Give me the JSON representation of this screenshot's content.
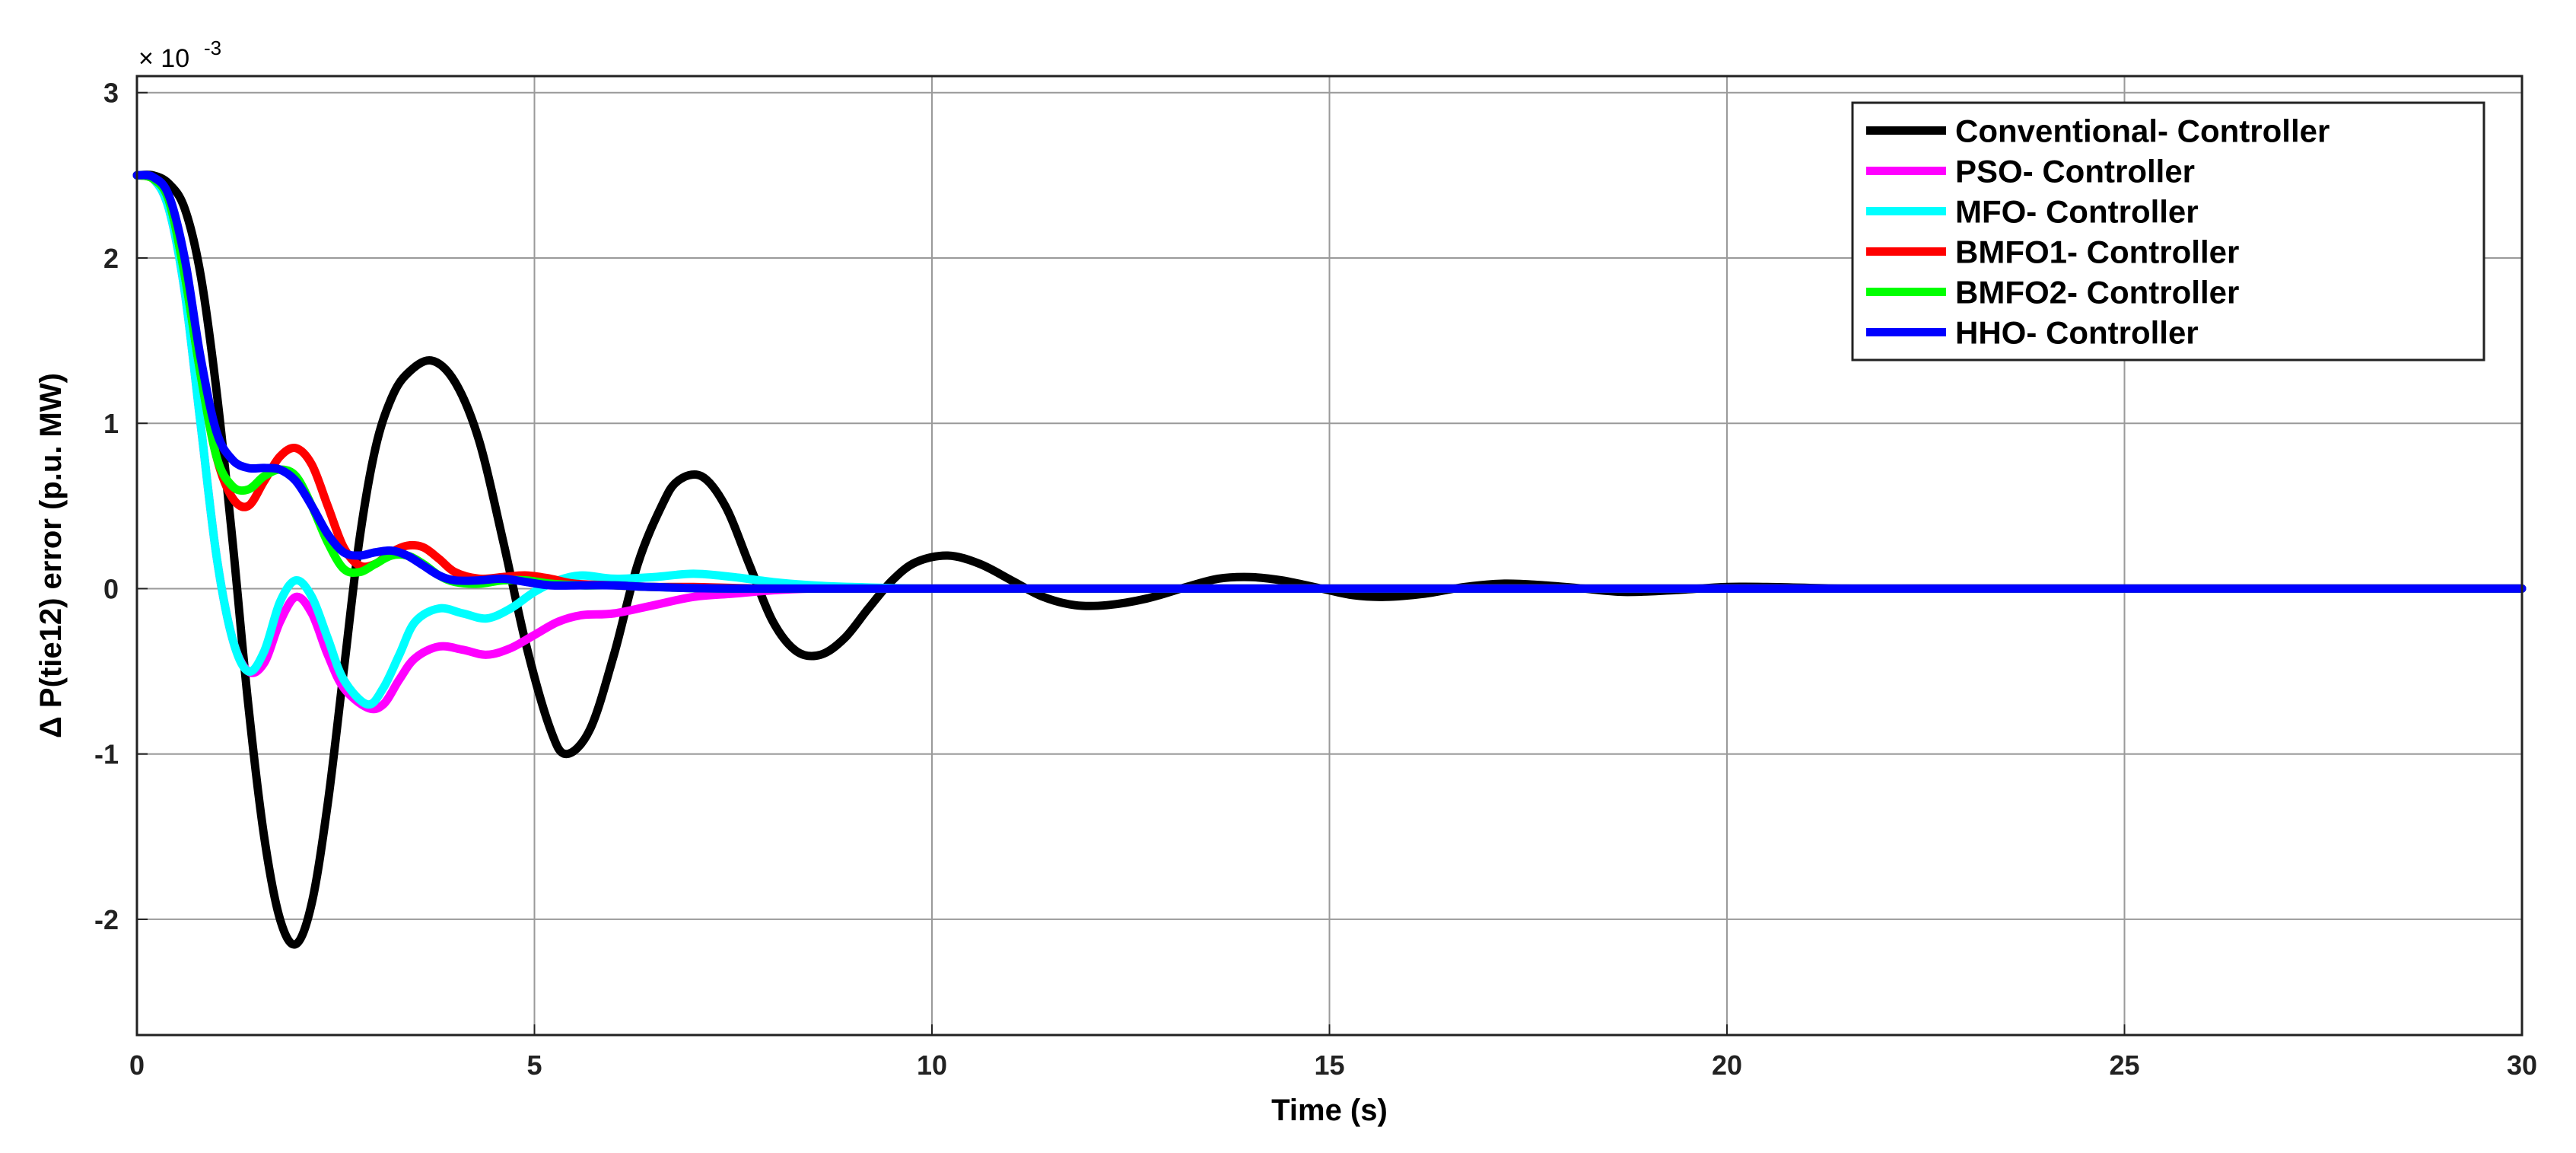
{
  "chart_data": {
    "type": "line",
    "title": "",
    "xlabel": "Time (s)",
    "ylabel": "Δ P(tie12) error (p.u. MW)",
    "y_multiplier_label": "× 10",
    "y_multiplier_exponent": "-3",
    "xlim": [
      0,
      30
    ],
    "ylim": [
      -2.7,
      3.1
    ],
    "xticks": [
      0,
      5,
      10,
      15,
      20,
      25,
      30
    ],
    "yticks": [
      -2,
      -1,
      0,
      1,
      2,
      3
    ],
    "xtick_labels": [
      "0",
      "5",
      "10",
      "15",
      "20",
      "25",
      "30"
    ],
    "ytick_labels": [
      "-2",
      "-1",
      "0",
      "1",
      "2",
      "3"
    ],
    "grid": true,
    "legend_position": "top-right",
    "series": [
      {
        "name": "Conventional- Controller",
        "color": "#000000",
        "points": [
          [
            0,
            2.5
          ],
          [
            0.2,
            2.5
          ],
          [
            0.4,
            2.45
          ],
          [
            0.6,
            2.3
          ],
          [
            0.8,
            1.9
          ],
          [
            1.0,
            1.2
          ],
          [
            1.2,
            0.3
          ],
          [
            1.4,
            -0.7
          ],
          [
            1.6,
            -1.5
          ],
          [
            1.8,
            -2.0
          ],
          [
            2.0,
            -2.15
          ],
          [
            2.2,
            -1.9
          ],
          [
            2.4,
            -1.3
          ],
          [
            2.6,
            -0.5
          ],
          [
            2.8,
            0.3
          ],
          [
            3.0,
            0.85
          ],
          [
            3.2,
            1.15
          ],
          [
            3.4,
            1.3
          ],
          [
            3.7,
            1.38
          ],
          [
            4.0,
            1.25
          ],
          [
            4.3,
            0.9
          ],
          [
            4.6,
            0.3
          ],
          [
            4.9,
            -0.35
          ],
          [
            5.2,
            -0.85
          ],
          [
            5.4,
            -1.0
          ],
          [
            5.7,
            -0.85
          ],
          [
            6.0,
            -0.4
          ],
          [
            6.3,
            0.15
          ],
          [
            6.6,
            0.5
          ],
          [
            6.8,
            0.65
          ],
          [
            7.1,
            0.68
          ],
          [
            7.4,
            0.5
          ],
          [
            7.7,
            0.15
          ],
          [
            8.0,
            -0.2
          ],
          [
            8.3,
            -0.38
          ],
          [
            8.6,
            -0.4
          ],
          [
            8.9,
            -0.3
          ],
          [
            9.2,
            -0.12
          ],
          [
            9.5,
            0.05
          ],
          [
            9.8,
            0.16
          ],
          [
            10.2,
            0.2
          ],
          [
            10.6,
            0.15
          ],
          [
            11.0,
            0.05
          ],
          [
            11.4,
            -0.05
          ],
          [
            11.8,
            -0.1
          ],
          [
            12.2,
            -0.1
          ],
          [
            12.7,
            -0.06
          ],
          [
            13.2,
            0.01
          ],
          [
            13.6,
            0.06
          ],
          [
            14.0,
            0.07
          ],
          [
            14.4,
            0.05
          ],
          [
            14.9,
            0.0
          ],
          [
            15.3,
            -0.04
          ],
          [
            15.7,
            -0.05
          ],
          [
            16.2,
            -0.03
          ],
          [
            16.7,
            0.01
          ],
          [
            17.2,
            0.03
          ],
          [
            17.7,
            0.02
          ],
          [
            18.2,
            0.0
          ],
          [
            18.7,
            -0.02
          ],
          [
            19.3,
            -0.01
          ],
          [
            20.0,
            0.01
          ],
          [
            20.5,
            0.01
          ],
          [
            21.5,
            0.0
          ],
          [
            22.5,
            0.0
          ],
          [
            24,
            0.0
          ],
          [
            26,
            0.0
          ],
          [
            28,
            0.0
          ],
          [
            30,
            0.0
          ]
        ]
      },
      {
        "name": "PSO- Controller",
        "color": "#ff00ff",
        "points": [
          [
            0,
            2.5
          ],
          [
            0.2,
            2.48
          ],
          [
            0.4,
            2.3
          ],
          [
            0.6,
            1.8
          ],
          [
            0.8,
            1.0
          ],
          [
            1.0,
            0.2
          ],
          [
            1.2,
            -0.3
          ],
          [
            1.4,
            -0.5
          ],
          [
            1.6,
            -0.45
          ],
          [
            1.8,
            -0.2
          ],
          [
            2.0,
            -0.05
          ],
          [
            2.2,
            -0.15
          ],
          [
            2.4,
            -0.4
          ],
          [
            2.6,
            -0.6
          ],
          [
            2.9,
            -0.72
          ],
          [
            3.1,
            -0.7
          ],
          [
            3.3,
            -0.55
          ],
          [
            3.5,
            -0.42
          ],
          [
            3.8,
            -0.35
          ],
          [
            4.1,
            -0.37
          ],
          [
            4.4,
            -0.4
          ],
          [
            4.7,
            -0.36
          ],
          [
            5.0,
            -0.28
          ],
          [
            5.3,
            -0.2
          ],
          [
            5.6,
            -0.16
          ],
          [
            6.0,
            -0.15
          ],
          [
            6.5,
            -0.1
          ],
          [
            7.0,
            -0.05
          ],
          [
            7.5,
            -0.03
          ],
          [
            8.0,
            -0.01
          ],
          [
            8.5,
            0.0
          ],
          [
            9,
            0.0
          ],
          [
            10,
            0.0
          ],
          [
            12,
            0.0
          ],
          [
            15,
            0.0
          ],
          [
            20,
            0.0
          ],
          [
            25,
            0.0
          ],
          [
            30,
            0.0
          ]
        ]
      },
      {
        "name": "MFO- Controller",
        "color": "#00ffff",
        "points": [
          [
            0,
            2.5
          ],
          [
            0.2,
            2.48
          ],
          [
            0.4,
            2.3
          ],
          [
            0.6,
            1.8
          ],
          [
            0.8,
            1.0
          ],
          [
            1.0,
            0.2
          ],
          [
            1.2,
            -0.3
          ],
          [
            1.4,
            -0.5
          ],
          [
            1.6,
            -0.38
          ],
          [
            1.8,
            -0.08
          ],
          [
            2.0,
            0.05
          ],
          [
            2.2,
            -0.05
          ],
          [
            2.4,
            -0.3
          ],
          [
            2.6,
            -0.55
          ],
          [
            2.9,
            -0.7
          ],
          [
            3.1,
            -0.6
          ],
          [
            3.3,
            -0.4
          ],
          [
            3.5,
            -0.2
          ],
          [
            3.8,
            -0.12
          ],
          [
            4.1,
            -0.15
          ],
          [
            4.4,
            -0.18
          ],
          [
            4.7,
            -0.12
          ],
          [
            5.0,
            -0.02
          ],
          [
            5.3,
            0.05
          ],
          [
            5.6,
            0.08
          ],
          [
            6.0,
            0.06
          ],
          [
            6.5,
            0.07
          ],
          [
            7.0,
            0.09
          ],
          [
            7.5,
            0.07
          ],
          [
            8.0,
            0.04
          ],
          [
            8.5,
            0.02
          ],
          [
            9.0,
            0.01
          ],
          [
            10,
            0.0
          ],
          [
            12,
            0.0
          ],
          [
            15,
            0.0
          ],
          [
            20,
            0.0
          ],
          [
            25,
            0.0
          ],
          [
            30,
            0.0
          ]
        ]
      },
      {
        "name": "BMFO1- Controller",
        "color": "#ff0000",
        "points": [
          [
            0,
            2.5
          ],
          [
            0.2,
            2.48
          ],
          [
            0.4,
            2.35
          ],
          [
            0.6,
            1.9
          ],
          [
            0.8,
            1.3
          ],
          [
            1.0,
            0.8
          ],
          [
            1.2,
            0.55
          ],
          [
            1.4,
            0.5
          ],
          [
            1.6,
            0.65
          ],
          [
            1.8,
            0.8
          ],
          [
            2.0,
            0.85
          ],
          [
            2.2,
            0.75
          ],
          [
            2.4,
            0.5
          ],
          [
            2.6,
            0.25
          ],
          [
            2.8,
            0.14
          ],
          [
            3.0,
            0.15
          ],
          [
            3.2,
            0.22
          ],
          [
            3.4,
            0.26
          ],
          [
            3.6,
            0.25
          ],
          [
            3.8,
            0.18
          ],
          [
            4.0,
            0.1
          ],
          [
            4.3,
            0.06
          ],
          [
            4.6,
            0.07
          ],
          [
            4.9,
            0.08
          ],
          [
            5.2,
            0.06
          ],
          [
            5.5,
            0.03
          ],
          [
            6.0,
            0.02
          ],
          [
            6.5,
            0.01
          ],
          [
            7.0,
            0.01
          ],
          [
            8,
            0.0
          ],
          [
            10,
            0.0
          ],
          [
            15,
            0.0
          ],
          [
            20,
            0.0
          ],
          [
            25,
            0.0
          ],
          [
            30,
            0.0
          ]
        ]
      },
      {
        "name": "BMFO2- Controller",
        "color": "#00ff00",
        "points": [
          [
            0,
            2.5
          ],
          [
            0.2,
            2.48
          ],
          [
            0.4,
            2.35
          ],
          [
            0.6,
            1.9
          ],
          [
            0.8,
            1.3
          ],
          [
            1.0,
            0.8
          ],
          [
            1.2,
            0.62
          ],
          [
            1.4,
            0.6
          ],
          [
            1.6,
            0.68
          ],
          [
            1.8,
            0.72
          ],
          [
            2.0,
            0.68
          ],
          [
            2.2,
            0.5
          ],
          [
            2.4,
            0.28
          ],
          [
            2.6,
            0.12
          ],
          [
            2.8,
            0.1
          ],
          [
            3.0,
            0.15
          ],
          [
            3.2,
            0.2
          ],
          [
            3.4,
            0.2
          ],
          [
            3.6,
            0.15
          ],
          [
            3.8,
            0.08
          ],
          [
            4.0,
            0.04
          ],
          [
            4.3,
            0.03
          ],
          [
            4.6,
            0.05
          ],
          [
            4.9,
            0.05
          ],
          [
            5.2,
            0.03
          ],
          [
            5.6,
            0.02
          ],
          [
            6.0,
            0.02
          ],
          [
            6.5,
            0.01
          ],
          [
            7.5,
            0.0
          ],
          [
            10,
            0.0
          ],
          [
            15,
            0.0
          ],
          [
            20,
            0.0
          ],
          [
            25,
            0.0
          ],
          [
            30,
            0.0
          ]
        ]
      },
      {
        "name": "HHO- Controller",
        "color": "#0000ff",
        "points": [
          [
            0,
            2.5
          ],
          [
            0.2,
            2.49
          ],
          [
            0.4,
            2.38
          ],
          [
            0.6,
            2.0
          ],
          [
            0.8,
            1.4
          ],
          [
            1.0,
            0.95
          ],
          [
            1.2,
            0.78
          ],
          [
            1.4,
            0.73
          ],
          [
            1.6,
            0.73
          ],
          [
            1.8,
            0.72
          ],
          [
            2.0,
            0.65
          ],
          [
            2.2,
            0.5
          ],
          [
            2.4,
            0.33
          ],
          [
            2.6,
            0.22
          ],
          [
            2.8,
            0.2
          ],
          [
            3.0,
            0.22
          ],
          [
            3.2,
            0.23
          ],
          [
            3.4,
            0.2
          ],
          [
            3.6,
            0.14
          ],
          [
            3.8,
            0.08
          ],
          [
            4.0,
            0.05
          ],
          [
            4.3,
            0.05
          ],
          [
            4.6,
            0.06
          ],
          [
            4.9,
            0.04
          ],
          [
            5.2,
            0.02
          ],
          [
            5.6,
            0.02
          ],
          [
            6.0,
            0.02
          ],
          [
            6.5,
            0.01
          ],
          [
            7.5,
            0.0
          ],
          [
            10,
            0.0
          ],
          [
            15,
            0.0
          ],
          [
            20,
            0.0
          ],
          [
            25,
            0.0
          ],
          [
            30,
            0.0
          ]
        ]
      }
    ]
  }
}
